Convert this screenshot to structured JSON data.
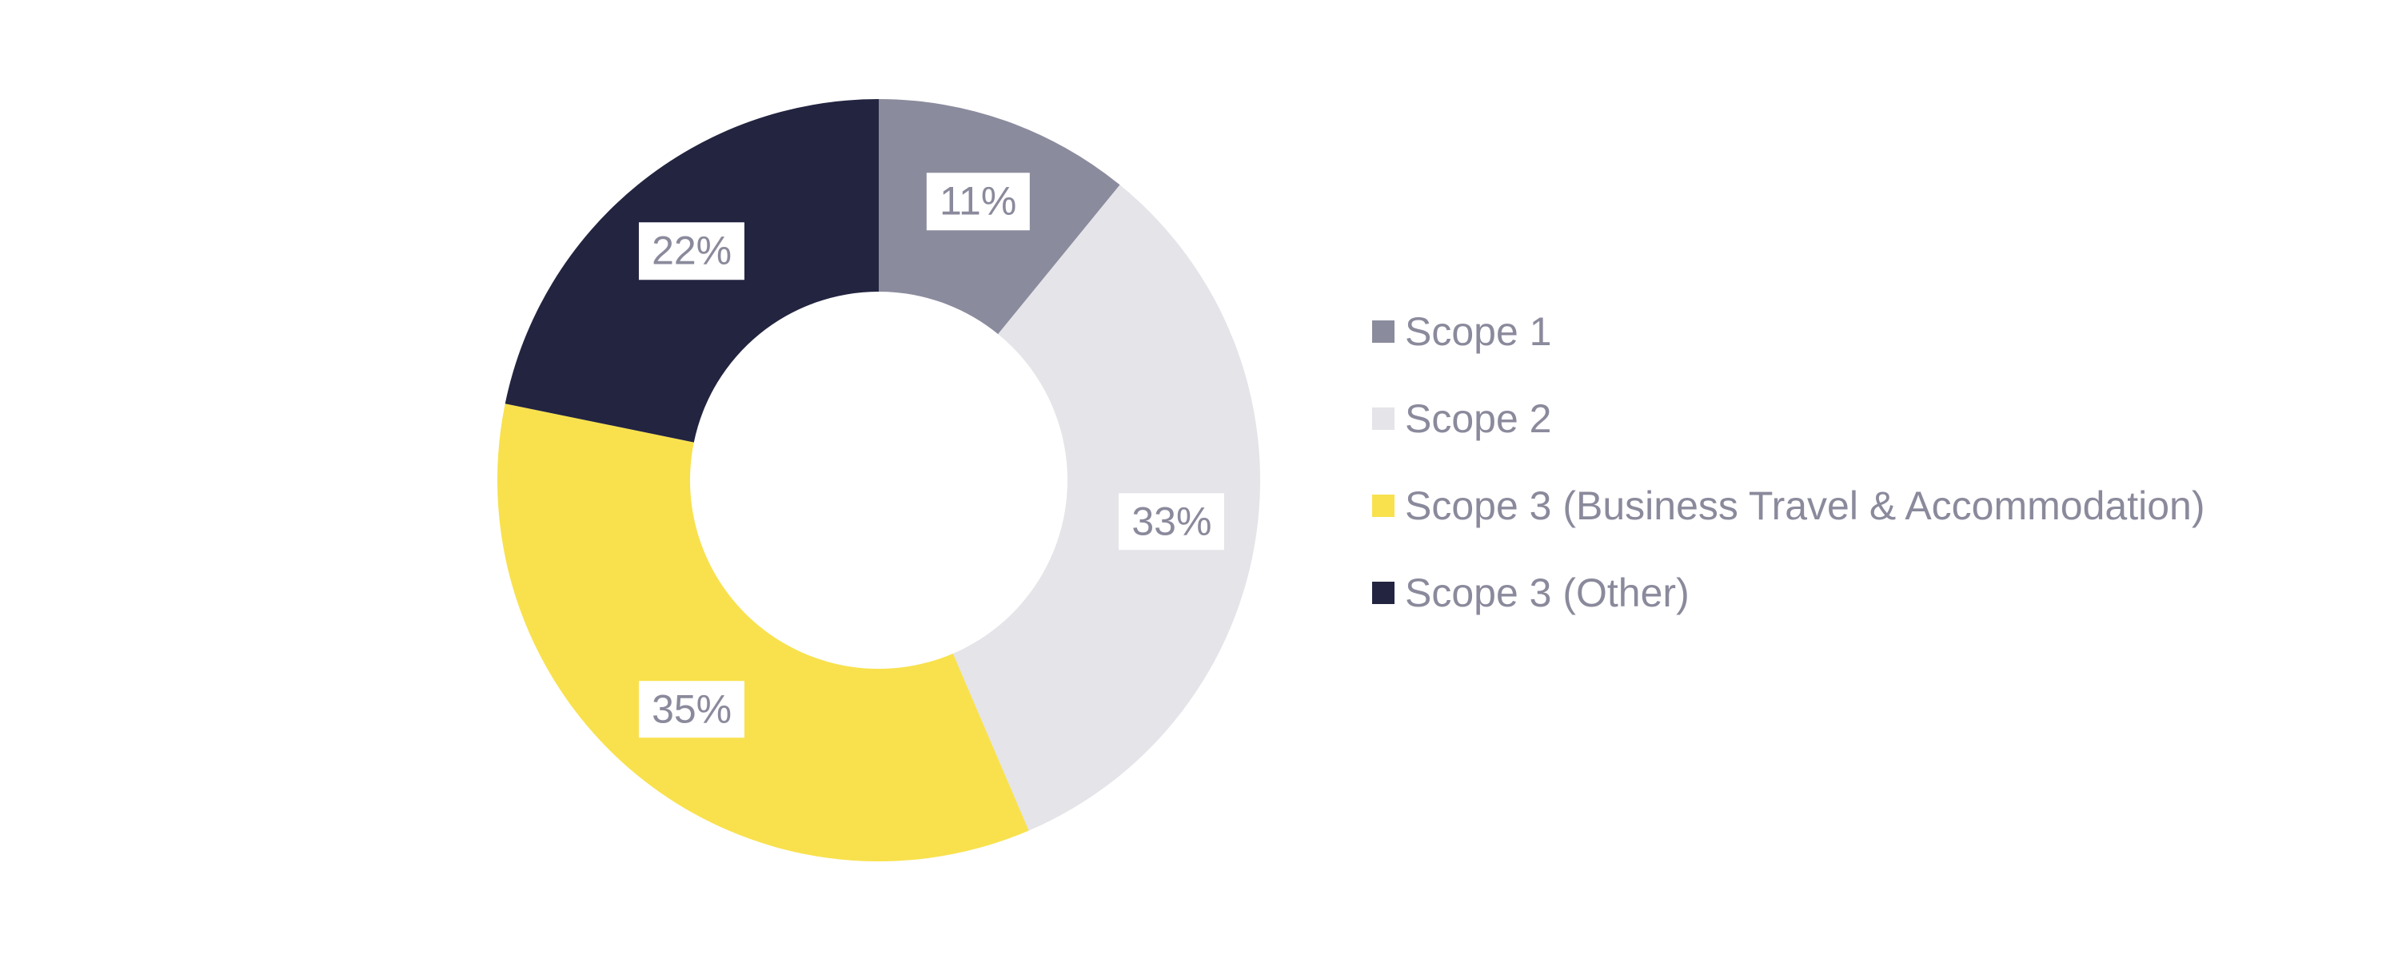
{
  "chart_data": {
    "type": "pie",
    "variant": "donut",
    "title": "",
    "start_angle_deg": 0,
    "direction": "clockwise",
    "legend_position": "right",
    "label_format": "percent",
    "colors": {
      "background": "#FFFFFF",
      "label_text": "#8A8A9C",
      "label_background": "#FFFFFF",
      "legend_text": "#8A8A9C"
    },
    "segments": [
      {
        "label": "Scope 1",
        "value": 11,
        "display": "11%",
        "color": "#8B8B9E"
      },
      {
        "label": "Scope 2",
        "value": 33,
        "display": "33%",
        "color": "#E4E4E9"
      },
      {
        "label": "Scope 3 (Business Travel & Accommodation)",
        "value": 35,
        "display": "35%",
        "color": "#F8E14D"
      },
      {
        "label": "Scope 3 (Other)",
        "value": 22,
        "display": "22%",
        "color": "#232440"
      }
    ]
  }
}
